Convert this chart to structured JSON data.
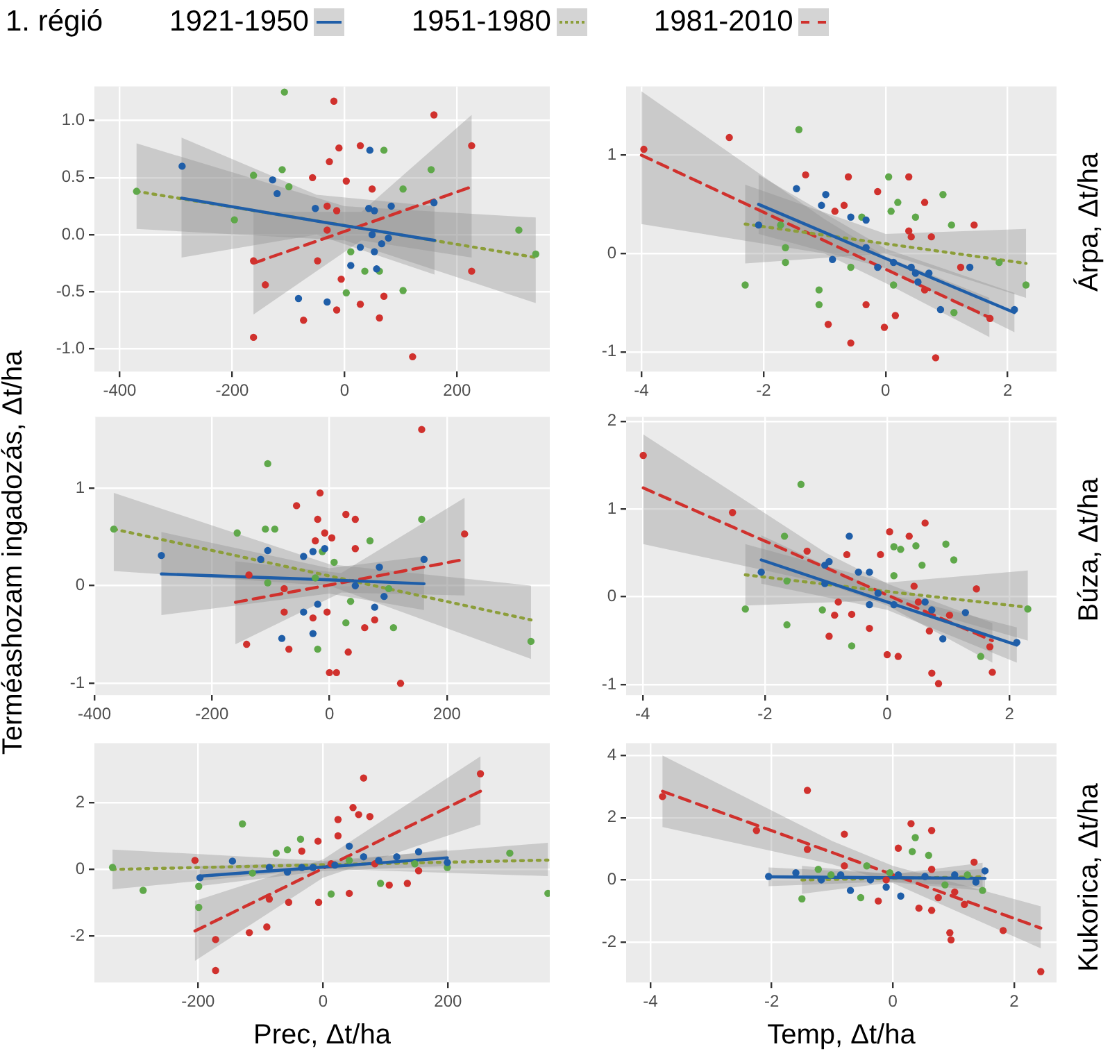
{
  "chart_data": [
    {
      "type": "scatter",
      "title": "1. régió",
      "legend": "top",
      "grid": true,
      "marker": "circle",
      "xlim": [
        -445,
        365
      ],
      "ylim": [
        -1.2,
        1.3
      ],
      "xticks": [
        -400,
        -200,
        0,
        200
      ],
      "yticks": [
        {
          "value": -1,
          "label": "-1.0"
        },
        {
          "value": -0.5,
          "label": "-0.5"
        },
        {
          "value": 0,
          "label": "0.0"
        },
        {
          "value": 0.5,
          "label": "0.5"
        },
        {
          "value": 1,
          "label": "1.0"
        }
      ],
      "series": [
        {
          "color": "#1f5ea8",
          "x": [
            -289,
            -128,
            -120,
            -52,
            -82,
            -31,
            43,
            53,
            49,
            28,
            53,
            66,
            78,
            83,
            159,
            57,
            11,
            45
          ],
          "values": [
            0.6,
            0.48,
            0.36,
            0.23,
            -0.56,
            -0.59,
            0.23,
            0.21,
            0,
            -0.11,
            -0.15,
            -0.08,
            -0.03,
            0.25,
            0.28,
            -0.3,
            -0.27,
            0.74
          ]
        },
        {
          "color": "#5fa84a",
          "x": [
            -370,
            -196,
            -162,
            -111,
            -107,
            -99,
            70,
            104,
            104,
            154,
            310,
            340,
            11,
            36,
            62,
            3
          ],
          "values": [
            0.38,
            0.13,
            0.52,
            0.57,
            1.25,
            0.42,
            0.74,
            0.4,
            -0.49,
            0.57,
            0.04,
            -0.17,
            -0.15,
            -0.32,
            -0.32,
            -0.51
          ]
        },
        {
          "color": "#d0312d",
          "x": [
            -162,
            -141,
            -162,
            -19,
            -10,
            -27,
            -57,
            3,
            -31,
            -14,
            28,
            49,
            159,
            226,
            226,
            121,
            -73,
            -14,
            28,
            62,
            70,
            -48,
            -6,
            -31
          ],
          "values": [
            -0.23,
            -0.44,
            -0.9,
            1.17,
            0.76,
            0.64,
            0.5,
            0.47,
            0.25,
            0.21,
            0.78,
            0.4,
            1.05,
            0.78,
            -0.32,
            -1.07,
            -0.75,
            -0.66,
            -0.61,
            -0.73,
            -0.54,
            -0.23,
            -0.39,
            0.04
          ]
        },
        {
          "type": "line",
          "name": "1921-1950",
          "color": "#1f5ea8",
          "line_style": "solid",
          "marker": "none",
          "x": [
            -290,
            -50,
            160
          ],
          "values": [
            0.32,
            0.12,
            -0.05
          ],
          "lower": [
            -0.2,
            0,
            -0.35
          ],
          "upper": [
            0.85,
            0.35,
            0.25
          ]
        },
        {
          "type": "line",
          "name": "1951-1980",
          "color": "#8c9e3a",
          "line_style": "dotted",
          "marker": "none",
          "x": [
            -370,
            0,
            340
          ],
          "values": [
            0.38,
            0.08,
            -0.2
          ],
          "lower": [
            0.05,
            -0.05,
            -0.6
          ],
          "upper": [
            0.8,
            0.25,
            0.15
          ]
        },
        {
          "type": "line",
          "name": "1981-2010",
          "color": "#d0312d",
          "line_style": "dashed",
          "marker": "none",
          "x": [
            -162,
            30,
            226
          ],
          "values": [
            -0.25,
            0.08,
            0.42
          ],
          "lower": [
            -0.7,
            -0.05,
            -0.2
          ],
          "upper": [
            0.2,
            0.2,
            1.05
          ]
        }
      ]
    },
    {
      "type": "scatter",
      "grid": true,
      "marker": "circle",
      "xlim": [
        -4.25,
        2.8
      ],
      "ylim": [
        -1.2,
        1.7
      ],
      "xticks": [
        -4,
        -2,
        0,
        2
      ],
      "yticks": [
        -1,
        0,
        1
      ],
      "y2label": "Árpa, Δt/ha",
      "series": [
        {
          "color": "#1f5ea8",
          "x": [
            -2.08,
            -1.46,
            -0.98,
            -1.05,
            -0.87,
            -0.32,
            -0.13,
            0.13,
            0.42,
            0.49,
            0.53,
            0.71,
            0.9,
            1.38,
            2.11,
            -0.57,
            -0.32
          ],
          "values": [
            0.29,
            0.66,
            0.6,
            0.49,
            -0.06,
            0.06,
            -0.14,
            -0.09,
            -0.14,
            -0.2,
            -0.29,
            -0.2,
            -0.57,
            -0.14,
            -0.57,
            0.37,
            0.34
          ]
        },
        {
          "color": "#5fa84a",
          "x": [
            -2.3,
            -1.64,
            -1.64,
            -1.42,
            -1.09,
            -1.09,
            -0.57,
            -0.39,
            0.05,
            0.09,
            0.2,
            0.13,
            0.49,
            0.94,
            1.08,
            1.12,
            2.3,
            -1.72,
            1.86
          ],
          "values": [
            -0.32,
            0.06,
            -0.09,
            1.26,
            -0.37,
            -0.52,
            -0.14,
            0.37,
            0.78,
            0.43,
            0.52,
            -0.32,
            0.37,
            0.6,
            0.29,
            -0.6,
            -0.32,
            0.29,
            -0.09
          ]
        },
        {
          "color": "#d0312d",
          "x": [
            -3.96,
            -2.56,
            -1.31,
            -0.61,
            -0.94,
            -0.57,
            -0.32,
            -0.02,
            0.16,
            -0.13,
            0.38,
            0.64,
            0.38,
            0.42,
            0.75,
            1.45,
            0.82,
            1.71,
            -0.68,
            -0.83,
            0.64,
            1.23
          ],
          "values": [
            1.06,
            1.18,
            0.8,
            0.78,
            -0.72,
            -0.91,
            -0.52,
            -0.75,
            -0.63,
            0.63,
            0.78,
            0.52,
            0.23,
            0.17,
            0.17,
            0.29,
            -1.06,
            -0.66,
            0.49,
            0.43,
            -0.37,
            -0.14
          ]
        },
        {
          "type": "line",
          "color": "#1f5ea8",
          "line_style": "solid",
          "marker": "none",
          "x": [
            -2.08,
            0,
            2.11
          ],
          "values": [
            0.5,
            -0.05,
            -0.6
          ],
          "lower": [
            0.2,
            -0.15,
            -0.8
          ],
          "upper": [
            0.8,
            0.05,
            -0.4
          ]
        },
        {
          "type": "line",
          "color": "#8c9e3a",
          "line_style": "dotted",
          "marker": "none",
          "x": [
            -2.3,
            0,
            2.3
          ],
          "values": [
            0.3,
            0.1,
            -0.1
          ],
          "lower": [
            -0.1,
            0,
            -0.45
          ],
          "upper": [
            0.7,
            0.2,
            0.25
          ]
        },
        {
          "type": "line",
          "color": "#d0312d",
          "line_style": "dashed",
          "marker": "none",
          "x": [
            -4,
            -1,
            0,
            1.7
          ],
          "values": [
            1,
            0.13,
            -0.16,
            -0.65
          ],
          "lower": [
            0.3,
            0,
            -0.3,
            -0.85
          ],
          "upper": [
            1.65,
            0.35,
            -0.03,
            -0.45
          ]
        }
      ]
    },
    {
      "type": "scatter",
      "ylabel": "Terméashozam ingadozás, Δt/ha",
      "grid": true,
      "marker": "circle",
      "xlim": [
        -400,
        375
      ],
      "ylim": [
        -1.12,
        1.73
      ],
      "xticks": [
        -400,
        -200,
        0,
        200
      ],
      "yticks": [
        -1,
        0,
        1
      ],
      "series": [
        {
          "color": "#1f5ea8",
          "x": [
            -286,
            -105,
            -117,
            -44,
            -28,
            -44,
            -28,
            -81,
            -8,
            85,
            77,
            93,
            161,
            44,
            -20
          ],
          "values": [
            0.31,
            0.36,
            0.27,
            0.3,
            0.35,
            -0.27,
            -0.49,
            -0.54,
            0.38,
            0.19,
            -0.22,
            -0.11,
            0.27,
            0,
            -0.19
          ]
        },
        {
          "color": "#5fa84a",
          "x": [
            -367,
            -157,
            -109,
            -93,
            -105,
            -105,
            -12,
            8,
            69,
            157,
            343,
            109,
            28,
            -20,
            36,
            101,
            -24
          ],
          "values": [
            0.58,
            0.54,
            0.58,
            0.58,
            1.25,
            0.03,
            0.35,
            0.24,
            0.46,
            0.68,
            -0.57,
            -0.43,
            -0.38,
            -0.65,
            -0.16,
            -0.03,
            0.08
          ]
        },
        {
          "color": "#d0312d",
          "x": [
            -141,
            -56,
            -16,
            -8,
            4,
            -24,
            -20,
            28,
            44,
            44,
            157,
            230,
            121,
            -69,
            0,
            12,
            32,
            60,
            77,
            -77,
            -28,
            -4,
            -137,
            -77
          ],
          "values": [
            -0.6,
            0.82,
            0.95,
            0.54,
            0.49,
            0.46,
            0.68,
            0.73,
            0.68,
            0.38,
            1.6,
            0.53,
            -1,
            -0.65,
            -0.89,
            -0.89,
            -0.68,
            -0.43,
            -0.35,
            -0.27,
            -0.33,
            -0.27,
            0.11,
            -0.03
          ]
        },
        {
          "type": "line",
          "color": "#1f5ea8",
          "line_style": "solid",
          "marker": "none",
          "x": [
            -286,
            0,
            161
          ],
          "values": [
            0.12,
            0.06,
            0.02
          ],
          "lower": [
            -0.3,
            -0.08,
            -0.25
          ],
          "upper": [
            0.55,
            0.18,
            0.3
          ]
        },
        {
          "type": "line",
          "color": "#8c9e3a",
          "line_style": "dotted",
          "marker": "none",
          "x": [
            -367,
            0,
            343
          ],
          "values": [
            0.58,
            0.1,
            -0.35
          ],
          "lower": [
            0.15,
            0,
            -0.75
          ],
          "upper": [
            0.95,
            0.22,
            0
          ]
        },
        {
          "type": "line",
          "color": "#d0312d",
          "line_style": "dashed",
          "marker": "none",
          "x": [
            -160,
            20,
            230
          ],
          "values": [
            -0.17,
            0.03,
            0.27
          ],
          "lower": [
            -0.6,
            -0.07,
            -0.1
          ],
          "upper": [
            0.25,
            0.13,
            0.9
          ]
        }
      ]
    },
    {
      "type": "scatter",
      "grid": true,
      "marker": "circle",
      "xlim": [
        -4.27,
        2.77
      ],
      "ylim": [
        -1.12,
        2.05
      ],
      "xticks": [
        -4,
        -2,
        0,
        2
      ],
      "yticks": [
        -1,
        0,
        1,
        2
      ],
      "y2label": "Búza, Δt/ha",
      "series": [
        {
          "color": "#1f5ea8",
          "x": [
            -2.06,
            -0.62,
            -1.02,
            -0.95,
            -0.47,
            -0.29,
            -0.29,
            -0.15,
            0.11,
            0.62,
            0.73,
            0.91,
            1.28,
            2.12,
            -1.02
          ],
          "values": [
            0.28,
            0.69,
            0.36,
            0.4,
            0.28,
            0.28,
            -0.09,
            0.04,
            -0.09,
            -0.06,
            -0.15,
            -0.48,
            -0.18,
            -0.52,
            0.15
          ]
        },
        {
          "color": "#5fa84a",
          "x": [
            -2.32,
            -1.64,
            -1.64,
            -1.68,
            -1.41,
            -1.06,
            -0.58,
            0.11,
            0.22,
            0.47,
            0.57,
            0.96,
            1.09,
            1.53,
            2.3,
            0.11
          ],
          "values": [
            -0.14,
            0.18,
            -0.32,
            0.69,
            1.28,
            -0.15,
            -0.56,
            0.57,
            0.54,
            0.58,
            0.36,
            0.6,
            0.42,
            -0.68,
            -0.14,
            0.24
          ]
        },
        {
          "color": "#d0312d",
          "x": [
            -3.99,
            -2.53,
            -1.31,
            -0.66,
            -0.11,
            0.04,
            0.36,
            0.62,
            0.44,
            0.51,
            1.46,
            1.68,
            1.72,
            0.73,
            0.84,
            0,
            0.18,
            -0.8,
            -0.86,
            -0.58,
            -0.95,
            -0.29,
            0.69,
            1.02
          ],
          "values": [
            1.61,
            0.96,
            0.52,
            0.48,
            0.48,
            0.74,
            0.69,
            0.84,
            0.12,
            -0.06,
            0.09,
            -0.57,
            -0.86,
            -0.87,
            -0.99,
            -0.66,
            -0.68,
            -0.06,
            -0.21,
            -0.2,
            -0.45,
            -0.36,
            -0.39,
            -0.21
          ]
        },
        {
          "type": "line",
          "color": "#1f5ea8",
          "line_style": "solid",
          "marker": "none",
          "x": [
            -2.06,
            0,
            2.12
          ],
          "values": [
            0.42,
            -0.06,
            -0.55
          ],
          "lower": [
            0.15,
            -0.15,
            -0.75
          ],
          "upper": [
            0.7,
            0.03,
            -0.35
          ]
        },
        {
          "type": "line",
          "color": "#8c9e3a",
          "line_style": "dotted",
          "marker": "none",
          "x": [
            -2.32,
            0,
            2.3
          ],
          "values": [
            0.25,
            0.06,
            -0.12
          ],
          "lower": [
            -0.1,
            -0.04,
            -0.5
          ],
          "upper": [
            0.6,
            0.16,
            0.3
          ]
        },
        {
          "type": "line",
          "color": "#d0312d",
          "line_style": "dashed",
          "marker": "none",
          "x": [
            -3.99,
            -1,
            0,
            1.72
          ],
          "values": [
            1.24,
            0.33,
            0.02,
            -0.5
          ],
          "lower": [
            0.6,
            0.15,
            -0.1,
            -0.75
          ],
          "upper": [
            1.85,
            0.5,
            0.15,
            -0.3
          ]
        }
      ]
    },
    {
      "type": "scatter",
      "xlabel": "Prec, Δt/ha",
      "grid": true,
      "marker": "circle",
      "xlim": [
        -366,
        363
      ],
      "ylim": [
        -3.4,
        3.8
      ],
      "xticks": [
        -200,
        0,
        200
      ],
      "yticks": [
        -2,
        0,
        2
      ],
      "series": [
        {
          "color": "#1f5ea8",
          "x": [
            -197,
            -145,
            -57,
            -34,
            -16,
            19,
            42,
            65,
            89,
            118,
            153,
            199,
            -86
          ],
          "values": [
            -0.25,
            0.25,
            -0.08,
            0.06,
            0.06,
            0.13,
            0.7,
            0.38,
            0.27,
            0.38,
            0.53,
            0.21,
            0.06
          ]
        },
        {
          "color": "#5fa84a",
          "x": [
            -337,
            -288,
            -199,
            -199,
            -129,
            -113,
            -75,
            -57,
            -36,
            13,
            92,
            147,
            199,
            299,
            360,
            42
          ],
          "values": [
            0.06,
            -0.63,
            -0.51,
            -1.14,
            1.37,
            -0.11,
            0.49,
            0.59,
            0.91,
            -0.74,
            -0.42,
            0.17,
            0.06,
            0.49,
            -0.72,
            0.27
          ]
        },
        {
          "color": "#d0312d",
          "x": [
            65,
            48,
            57,
            75,
            24,
            24,
            -8,
            252,
            -205,
            -172,
            -172,
            -118,
            -90,
            -86,
            -55,
            -7,
            42,
            106,
            135,
            -34,
            13,
            83,
            153
          ],
          "values": [
            2.75,
            1.86,
            1.65,
            1.59,
            1.5,
            1.01,
            0.85,
            2.88,
            0.27,
            -2.11,
            -3.04,
            -1.9,
            -1.73,
            -0.89,
            -0.99,
            -0.99,
            -0.72,
            -0.47,
            -0.42,
            0.55,
            0.17,
            0.17,
            -0.04
          ]
        },
        {
          "type": "line",
          "color": "#1f5ea8",
          "line_style": "solid",
          "marker": "none",
          "x": [
            -197,
            0,
            199
          ],
          "values": [
            -0.2,
            0.07,
            0.35
          ],
          "lower": [
            -0.5,
            -0.05,
            0.1
          ],
          "upper": [
            0.1,
            0.2,
            0.6
          ]
        },
        {
          "type": "line",
          "color": "#8c9e3a",
          "line_style": "dotted",
          "marker": "none",
          "x": [
            -337,
            0,
            360
          ],
          "values": [
            0,
            0.14,
            0.28
          ],
          "lower": [
            -0.6,
            0.02,
            -0.2
          ],
          "upper": [
            0.6,
            0.26,
            0.8
          ]
        },
        {
          "type": "line",
          "color": "#d0312d",
          "line_style": "dashed",
          "marker": "none",
          "x": [
            -205,
            0,
            252
          ],
          "values": [
            -1.85,
            0.03,
            2.35
          ],
          "lower": [
            -2.75,
            -0.25,
            1.35
          ],
          "upper": [
            -0.95,
            0.3,
            3.4
          ]
        }
      ]
    },
    {
      "type": "scatter",
      "xlabel": "Temp, Δt/ha",
      "grid": true,
      "marker": "circle",
      "xlim": [
        -4.4,
        2.7
      ],
      "ylim": [
        -3.3,
        4.4
      ],
      "xticks": [
        -4,
        -2,
        0,
        2
      ],
      "yticks": [
        -2,
        0,
        2,
        4
      ],
      "y2label": "Kukorica, Δt/ha",
      "series": [
        {
          "color": "#1f5ea8",
          "x": [
            -2.05,
            -1.6,
            -1.18,
            -0.86,
            -0.7,
            -0.37,
            -0.11,
            0.09,
            0.53,
            1.02,
            1.37,
            1.52,
            0.13
          ],
          "values": [
            0.11,
            0.23,
            0,
            0.16,
            -0.34,
            0,
            -0.23,
            0.16,
            0.11,
            0.16,
            -0.07,
            0.29,
            -0.52
          ]
        },
        {
          "color": "#5fa84a",
          "x": [
            -1.5,
            -1.23,
            -1.02,
            -0.53,
            -0.05,
            0.32,
            0.37,
            0.59,
            0.86,
            1.23,
            1.48,
            -0.43
          ],
          "values": [
            -0.61,
            0.34,
            0.16,
            -0.57,
            0.23,
            0.91,
            1.36,
            0.79,
            -0.16,
            0.16,
            -0.34,
            0.45
          ]
        },
        {
          "color": "#d0312d",
          "x": [
            -3.8,
            -2.25,
            -1.41,
            -1.41,
            -0.8,
            -0.8,
            -0.11,
            0.09,
            0.3,
            0.64,
            0.64,
            0.43,
            0.64,
            0.75,
            0.96,
            0.94,
            1.18,
            1.82,
            2.44,
            -0.24,
            1.02,
            1.34
          ],
          "values": [
            2.68,
            1.59,
            2.88,
            0.98,
            1.47,
            0.45,
            0,
            1.02,
            1.81,
            1.59,
            0.34,
            -0.91,
            -0.98,
            -0.57,
            -1.93,
            -1.7,
            -0.79,
            -1.63,
            -2.95,
            -0.68,
            -0.39,
            0.57
          ]
        },
        {
          "type": "line",
          "color": "#1f5ea8",
          "line_style": "solid",
          "marker": "none",
          "x": [
            -2.05,
            0,
            1.52
          ],
          "values": [
            0.1,
            0.07,
            0.05
          ],
          "lower": [
            -0.2,
            -0.05,
            -0.25
          ],
          "upper": [
            0.4,
            0.2,
            0.35
          ]
        },
        {
          "type": "line",
          "color": "#8c9e3a",
          "line_style": "dotted",
          "marker": "none",
          "x": [
            -1.5,
            0,
            1.48
          ],
          "values": [
            0,
            0.05,
            0.1
          ],
          "lower": [
            -0.45,
            -0.08,
            -0.35
          ],
          "upper": [
            0.45,
            0.18,
            0.55
          ]
        },
        {
          "type": "line",
          "color": "#d0312d",
          "line_style": "dashed",
          "marker": "none",
          "x": [
            -3.8,
            -1,
            0,
            2.44
          ],
          "values": [
            2.85,
            0.88,
            0.17,
            -1.55
          ],
          "lower": [
            1.7,
            0.5,
            -0.1,
            -2.2
          ],
          "upper": [
            4,
            1.25,
            0.45,
            -0.85
          ]
        }
      ]
    }
  ]
}
